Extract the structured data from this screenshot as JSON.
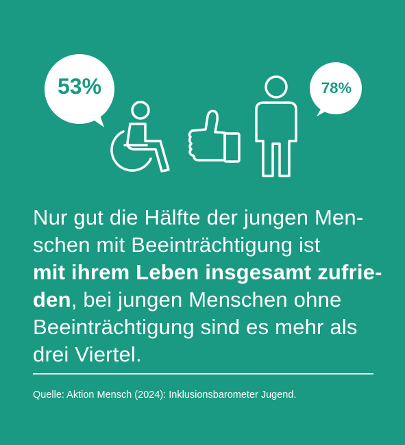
{
  "colors": {
    "background": "#1a9a82",
    "foreground": "#ffffff"
  },
  "bubbles": {
    "left_percent": "53%",
    "right_percent": "78%"
  },
  "icons": [
    "wheelchair-user-icon",
    "thumbs-up-icon",
    "standing-person-icon",
    "speech-bubble-icon"
  ],
  "text": {
    "line1": "Nur gut die Hälfte der jungen Men-",
    "line2": "schen mit Beeinträchtigung ist",
    "line3_bold": "mit ihrem Leben insgesamt zufrie-",
    "line4_bold": "den",
    "line4_rest": ", bei jungen Menschen ohne",
    "line5": "Beeinträchtigung sind es mehr als",
    "line6": "drei Viertel."
  },
  "source": "Quelle: Aktion Mensch (2024): Inklusionsbarometer Jugend."
}
